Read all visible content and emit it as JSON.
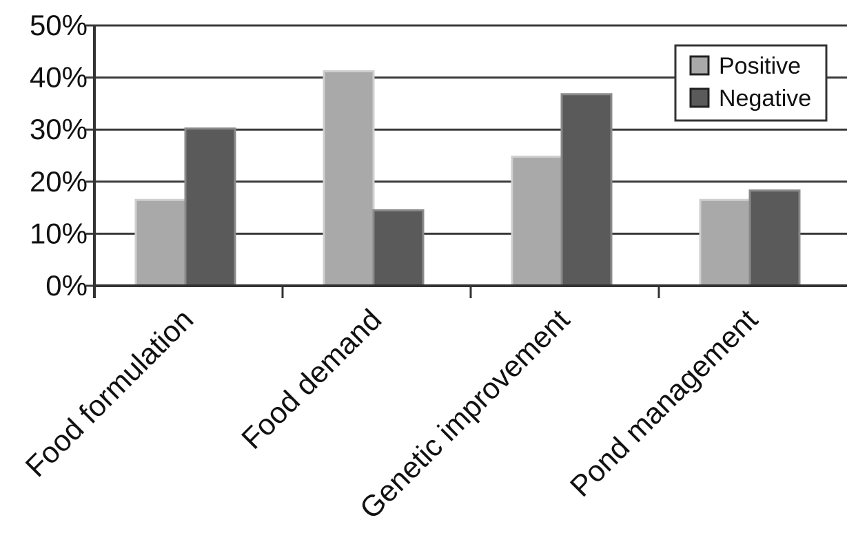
{
  "chart_data": {
    "type": "bar",
    "categories": [
      "Food formulation",
      "Food demand",
      "Genetic improvement",
      "Pond management"
    ],
    "series": [
      {
        "name": "Positive",
        "values": [
          16.5,
          41.2,
          24.8,
          16.5
        ],
        "color": "#a9a9a9"
      },
      {
        "name": "Negative",
        "values": [
          30.2,
          14.5,
          36.8,
          18.3
        ],
        "color": "#5a5a5a"
      }
    ],
    "y_ticks": [
      "0%",
      "10%",
      "20%",
      "30%",
      "40%",
      "50%"
    ],
    "ylim": [
      0,
      50
    ],
    "grid": true,
    "legend_position": "top-right"
  }
}
